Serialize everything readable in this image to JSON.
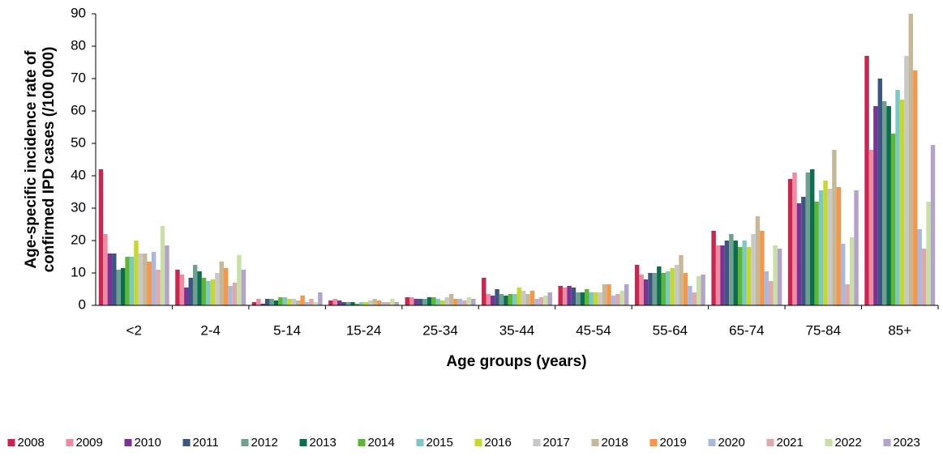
{
  "chart_data": {
    "type": "bar",
    "xlabel": "Age groups (years)",
    "ylabel": [
      "Age-specific incidence rate of",
      "confirmed IPD cases (/100 000)"
    ],
    "categories": [
      "<2",
      "2-4",
      "5-14",
      "15-24",
      "25-34",
      "35-44",
      "45-54",
      "55-64",
      "65-74",
      "75-84",
      "85+"
    ],
    "ylim": [
      0,
      90
    ],
    "yticks": [
      0,
      10,
      20,
      30,
      40,
      50,
      60,
      70,
      80,
      90
    ],
    "legend": "bottom",
    "series": [
      {
        "name": "2008",
        "color": "#c8254f",
        "values": [
          42,
          11,
          1,
          1.5,
          2.5,
          8.5,
          6,
          12.5,
          23,
          39,
          77
        ]
      },
      {
        "name": "2009",
        "color": "#f08aa0",
        "values": [
          22,
          9.5,
          2,
          2,
          2.5,
          3.5,
          5.5,
          9.5,
          18.5,
          41,
          48
        ]
      },
      {
        "name": "2010",
        "color": "#7b3294",
        "values": [
          16,
          5.5,
          0.5,
          1.5,
          2,
          3,
          6,
          8,
          18.5,
          31.5,
          61.5
        ]
      },
      {
        "name": "2011",
        "color": "#3b5683",
        "values": [
          16,
          8.5,
          2,
          1,
          2,
          5,
          5.5,
          10,
          20,
          33.5,
          70
        ]
      },
      {
        "name": "2012",
        "color": "#6fa08f",
        "values": [
          11,
          12.5,
          2,
          1,
          2,
          3.5,
          4,
          10,
          22,
          41,
          63
        ]
      },
      {
        "name": "2013",
        "color": "#0b6e4f",
        "values": [
          11.5,
          10.5,
          1.5,
          1,
          2.5,
          3,
          4,
          12,
          20,
          42,
          61.5
        ]
      },
      {
        "name": "2014",
        "color": "#5cb832",
        "values": [
          15,
          8.5,
          2.5,
          0.5,
          2.5,
          3.5,
          5,
          10,
          18,
          32,
          53
        ]
      },
      {
        "name": "2015",
        "color": "#7cc8c6",
        "values": [
          15,
          7.5,
          2.5,
          1,
          2,
          3.5,
          4,
          10.5,
          20,
          35.5,
          66.5
        ]
      },
      {
        "name": "2016",
        "color": "#c5d92b",
        "values": [
          20,
          8,
          2,
          1,
          1.5,
          5.5,
          4,
          11.5,
          18,
          38.5,
          63.5
        ]
      },
      {
        "name": "2017",
        "color": "#c8c8c8",
        "values": [
          16,
          10,
          2,
          1.5,
          2.5,
          4.5,
          4,
          12.5,
          22,
          36,
          77
        ]
      },
      {
        "name": "2018",
        "color": "#c4b896",
        "values": [
          16,
          13.5,
          1.5,
          2,
          3.5,
          3.5,
          6.5,
          15.5,
          27.5,
          48,
          90
        ]
      },
      {
        "name": "2019",
        "color": "#f79646",
        "values": [
          13.5,
          11.5,
          3,
          1.5,
          2,
          4.5,
          6.5,
          10,
          23,
          36.5,
          72.5
        ]
      },
      {
        "name": "2020",
        "color": "#a9b8e0",
        "values": [
          16.5,
          6,
          1,
          1,
          2,
          2,
          3,
          6,
          10.5,
          19,
          23.5
        ]
      },
      {
        "name": "2021",
        "color": "#e0a9a9",
        "values": [
          11,
          7,
          2,
          1,
          1.5,
          2.5,
          3.5,
          4,
          7.5,
          6.5,
          17.5
        ]
      },
      {
        "name": "2022",
        "color": "#c8e0a6",
        "values": [
          24.5,
          15.5,
          1,
          2,
          2.5,
          3,
          4.5,
          9,
          18.5,
          21,
          32
        ]
      },
      {
        "name": "2023",
        "color": "#b3a2cc",
        "values": [
          18.5,
          11,
          4,
          1,
          2,
          4,
          6.5,
          9.5,
          17.5,
          35.5,
          49.5
        ]
      }
    ]
  }
}
